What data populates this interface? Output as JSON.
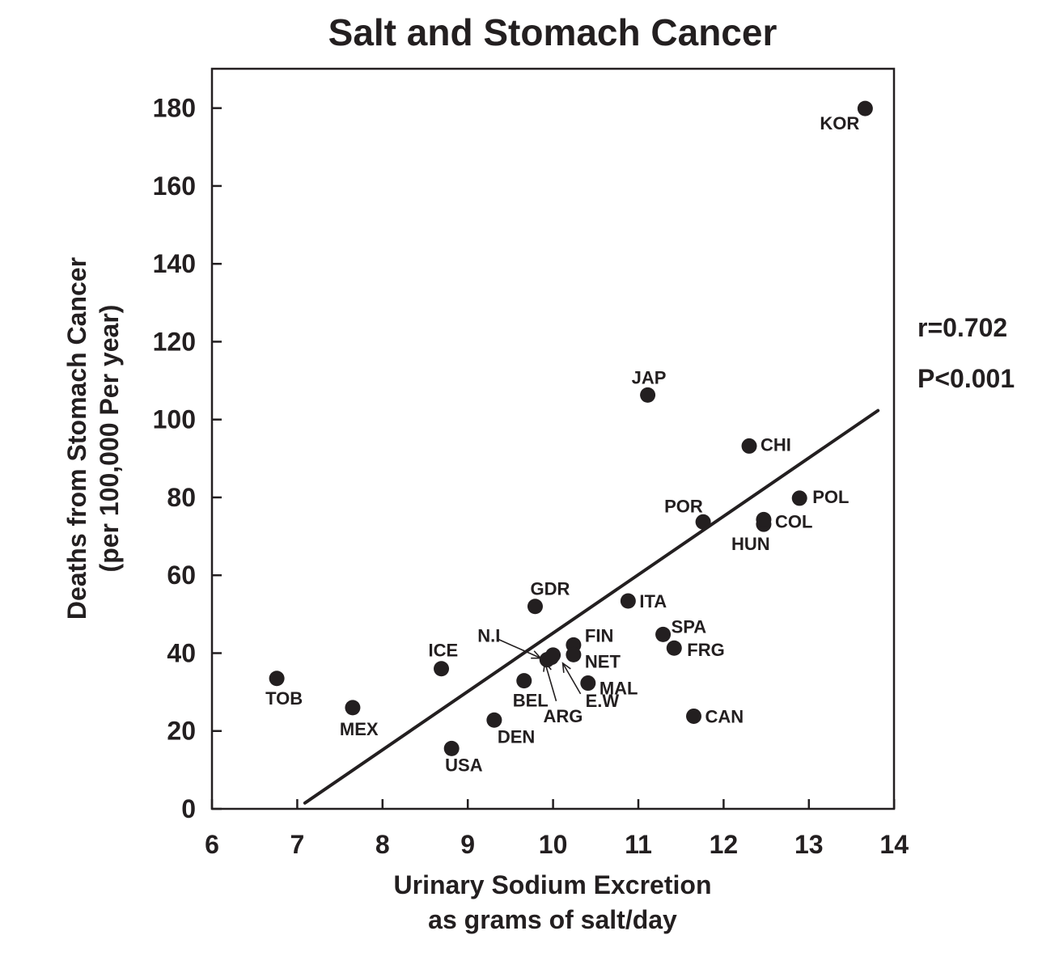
{
  "chart_data": {
    "type": "scatter",
    "title": "Salt and Stomach Cancer",
    "xlabel": [
      "Urinary Sodium Excretion",
      "as grams of salt/day"
    ],
    "ylabel": [
      "Deaths from Stomach Cancer",
      "(per 100,000 Per year)"
    ],
    "xlim": [
      6,
      14
    ],
    "ylim": [
      0,
      190
    ],
    "xticks": [
      6,
      7,
      8,
      9,
      10,
      11,
      12,
      13,
      14
    ],
    "yticks": [
      0,
      20,
      40,
      60,
      80,
      100,
      120,
      140,
      160,
      180
    ],
    "grid": false,
    "points": [
      {
        "label": "TOB",
        "x": 6.76,
        "y": 33.5
      },
      {
        "label": "MEX",
        "x": 7.65,
        "y": 26.0
      },
      {
        "label": "ICE",
        "x": 8.69,
        "y": 36.0
      },
      {
        "label": "USA",
        "x": 8.81,
        "y": 15.5
      },
      {
        "label": "DEN",
        "x": 9.31,
        "y": 22.8
      },
      {
        "label": "BEL",
        "x": 9.66,
        "y": 32.9
      },
      {
        "label": "GDR",
        "x": 9.79,
        "y": 52.0
      },
      {
        "label": "N.I",
        "x": 9.93,
        "y": 38.3
      },
      {
        "label": "ARG",
        "x": 9.98,
        "y": 38.9
      },
      {
        "label": "E.W",
        "x": 10.0,
        "y": 39.5
      },
      {
        "label": "FIN",
        "x": 10.24,
        "y": 42.1
      },
      {
        "label": "NET",
        "x": 10.24,
        "y": 39.6
      },
      {
        "label": "MAL",
        "x": 10.41,
        "y": 32.3
      },
      {
        "label": "ITA",
        "x": 10.88,
        "y": 53.4
      },
      {
        "label": "JAP",
        "x": 11.11,
        "y": 106.3
      },
      {
        "label": "SPA",
        "x": 11.29,
        "y": 44.8
      },
      {
        "label": "FRG",
        "x": 11.42,
        "y": 41.3
      },
      {
        "label": "CAN",
        "x": 11.65,
        "y": 23.8
      },
      {
        "label": "POR",
        "x": 11.76,
        "y": 73.7
      },
      {
        "label": "CHI",
        "x": 12.3,
        "y": 93.2
      },
      {
        "label": "HUN",
        "x": 12.47,
        "y": 73.1
      },
      {
        "label": "COL",
        "x": 12.47,
        "y": 74.3
      },
      {
        "label": "POL",
        "x": 12.89,
        "y": 79.8
      },
      {
        "label": "KOR",
        "x": 13.66,
        "y": 179.9
      }
    ],
    "regression_line": {
      "x": [
        7.09,
        13.81
      ],
      "y": [
        1.5,
        102.3
      ]
    },
    "annotations": [
      "r=0.702",
      "P<0.001"
    ]
  }
}
